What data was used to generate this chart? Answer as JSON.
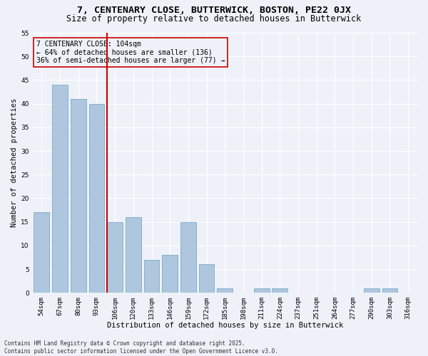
{
  "title": "7, CENTENARY CLOSE, BUTTERWICK, BOSTON, PE22 0JX",
  "subtitle": "Size of property relative to detached houses in Butterwick",
  "xlabel": "Distribution of detached houses by size in Butterwick",
  "ylabel": "Number of detached properties",
  "categories": [
    "54sqm",
    "67sqm",
    "80sqm",
    "93sqm",
    "106sqm",
    "120sqm",
    "133sqm",
    "146sqm",
    "159sqm",
    "172sqm",
    "185sqm",
    "198sqm",
    "211sqm",
    "224sqm",
    "237sqm",
    "251sqm",
    "264sqm",
    "277sqm",
    "290sqm",
    "303sqm",
    "316sqm"
  ],
  "values": [
    17,
    44,
    41,
    40,
    15,
    16,
    7,
    8,
    15,
    6,
    1,
    0,
    1,
    1,
    0,
    0,
    0,
    0,
    1,
    1,
    0
  ],
  "bar_color": "#aec6de",
  "bar_edgecolor": "#7aaac8",
  "vline_index": 4,
  "vline_color": "#cc0000",
  "annotation_text": "7 CENTENARY CLOSE: 104sqm\n← 64% of detached houses are smaller (136)\n36% of semi-detached houses are larger (77) →",
  "annotation_box_edgecolor": "#cc0000",
  "ylim": [
    0,
    55
  ],
  "yticks": [
    0,
    5,
    10,
    15,
    20,
    25,
    30,
    35,
    40,
    45,
    50,
    55
  ],
  "footnote": "Contains HM Land Registry data © Crown copyright and database right 2025.\nContains public sector information licensed under the Open Government Licence v3.0.",
  "bg_color": "#eef2f8",
  "grid_color": "#ffffff",
  "title_fontsize": 9.5,
  "subtitle_fontsize": 8.5,
  "tick_fontsize": 6.5,
  "label_fontsize": 7.5,
  "annotation_fontsize": 7.0,
  "footnote_fontsize": 5.5
}
